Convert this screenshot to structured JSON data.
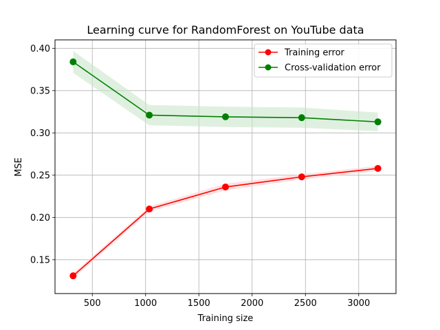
{
  "chart_data": {
    "type": "line",
    "title": "Learning curve for RandomForest on YouTube data",
    "xlabel": "Training size",
    "ylabel": "MSE",
    "xlim": [
      150,
      3350
    ],
    "ylim": [
      0.11,
      0.41
    ],
    "xticks": [
      500,
      1000,
      1500,
      2000,
      2500,
      3000
    ],
    "yticks": [
      0.15,
      0.2,
      0.25,
      0.3,
      0.35,
      0.4
    ],
    "xtick_labels": [
      "500",
      "1000",
      "1500",
      "2000",
      "2500",
      "3000"
    ],
    "ytick_labels": [
      "0.15",
      "0.20",
      "0.25",
      "0.30",
      "0.35",
      "0.40"
    ],
    "grid": true,
    "legend_position": "top-right",
    "x": [
      320,
      1035,
      1750,
      2465,
      3180
    ],
    "series": [
      {
        "name": "Training error",
        "color": "#ff0000",
        "fill_color": "#ffcccc",
        "values": [
          0.131,
          0.21,
          0.236,
          0.248,
          0.258
        ],
        "lower": [
          0.128,
          0.207,
          0.232,
          0.245,
          0.255
        ],
        "upper": [
          0.134,
          0.213,
          0.24,
          0.251,
          0.261
        ]
      },
      {
        "name": "Cross-validation error",
        "color": "#008000",
        "fill_color": "#cce6cc",
        "values": [
          0.384,
          0.321,
          0.319,
          0.318,
          0.313
        ],
        "lower": [
          0.371,
          0.309,
          0.307,
          0.306,
          0.302
        ],
        "upper": [
          0.397,
          0.333,
          0.331,
          0.33,
          0.324
        ]
      }
    ]
  }
}
